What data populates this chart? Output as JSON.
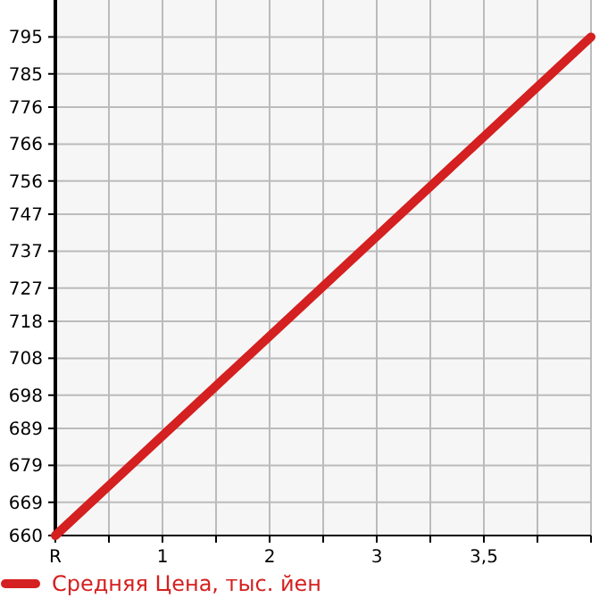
{
  "chart_data": {
    "type": "line",
    "categories": [
      "R",
      "1",
      "2",
      "3",
      "3,5",
      null
    ],
    "series": [
      {
        "name": "Средняя Цена, тыс. йен",
        "color": "#d42020",
        "values": [
          660,
          687,
          714,
          741,
          768,
          795
        ]
      }
    ],
    "ylim": [
      660,
      805
    ],
    "yticks": [
      660,
      669,
      679,
      689,
      698,
      708,
      718,
      727,
      737,
      747,
      756,
      766,
      776,
      785,
      795
    ],
    "grid": true,
    "legend": "bottom",
    "marker": "none",
    "line_style": "solid"
  }
}
